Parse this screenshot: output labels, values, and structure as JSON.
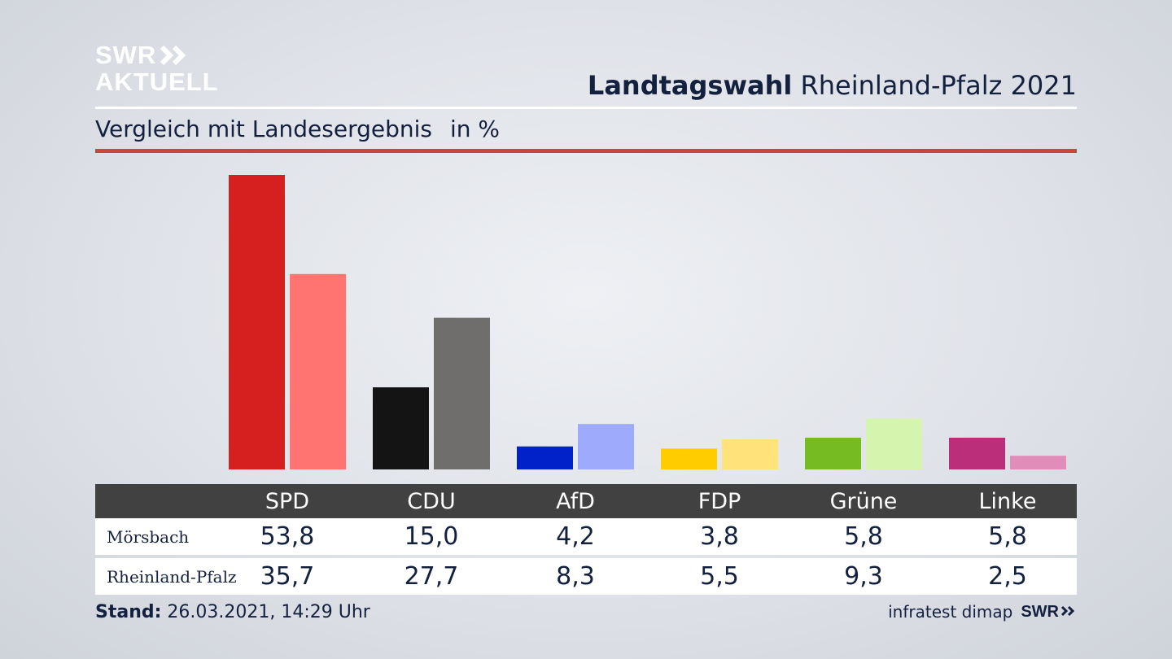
{
  "brand": {
    "line1": "SWR",
    "line2": "AKTUELL",
    "chevrons": "»"
  },
  "header": {
    "title_bold": "Landtagswahl",
    "title_rest": "Rheinland-Pfalz 2021"
  },
  "subtitle": {
    "text": "Vergleich mit Landesergebnis",
    "unit": "in %"
  },
  "chart_data": {
    "type": "bar",
    "title": "Landtagswahl Rheinland-Pfalz 2021",
    "subtitle": "Vergleich mit Landesergebnis in %",
    "categories": [
      "SPD",
      "CDU",
      "AfD",
      "FDP",
      "Grüne",
      "Linke"
    ],
    "series": [
      {
        "name": "Mörsbach",
        "values": [
          53.8,
          15.0,
          4.2,
          3.8,
          5.8,
          5.8
        ],
        "labels": [
          "53,8",
          "15,0",
          "4,2",
          "3,8",
          "5,8",
          "5,8"
        ]
      },
      {
        "name": "Rheinland-Pfalz",
        "values": [
          35.7,
          27.7,
          8.3,
          5.5,
          9.3,
          2.5
        ],
        "labels": [
          "35,7",
          "27,7",
          "8,3",
          "5,5",
          "9,3",
          "2,5"
        ]
      }
    ],
    "colors": {
      "Mörsbach": [
        "#d61f1f",
        "#141414",
        "#0022c8",
        "#ffcc00",
        "#77bb22",
        "#bb2f7a"
      ],
      "Rheinland-Pfalz": [
        "#ff7470",
        "#6f6e6c",
        "#9eaafc",
        "#ffe27a",
        "#d5f4ae",
        "#e08eb9"
      ]
    },
    "ylim": [
      0,
      53.8
    ],
    "grid": false,
    "legend": "table-below"
  },
  "footer": {
    "stand_label": "Stand:",
    "stand_value": "26.03.2021, 14:29 Uhr",
    "source": "infratest dimap",
    "source_brand": "SWR"
  }
}
